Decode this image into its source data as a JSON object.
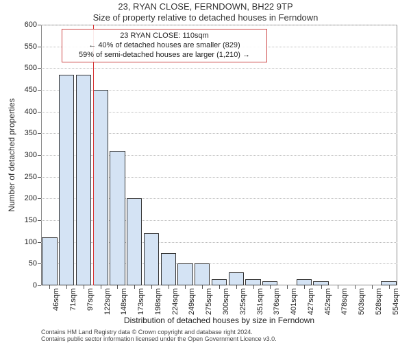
{
  "title": {
    "address": "23, RYAN CLOSE, FERNDOWN, BH22 9TP",
    "subtitle": "Size of property relative to detached houses in Ferndown"
  },
  "ylabel": "Number of detached properties",
  "xlabel": "Distribution of detached houses by size in Ferndown",
  "chart": {
    "type": "bar",
    "background_color": "#ffffff",
    "grid_color": "#bbbbbb",
    "border_color": "#888888",
    "bar_fill": "#d4e3f4",
    "bar_edge": "#333333",
    "bar_width_ratio": 0.9,
    "reference_line": {
      "x_index": 2.55,
      "color": "#d63636"
    },
    "ylim": [
      0,
      600
    ],
    "ytick_step": 50,
    "categories": [
      "46sqm",
      "71sqm",
      "97sqm",
      "122sqm",
      "148sqm",
      "173sqm",
      "198sqm",
      "224sqm",
      "249sqm",
      "275sqm",
      "300sqm",
      "325sqm",
      "351sqm",
      "376sqm",
      "401sqm",
      "427sqm",
      "452sqm",
      "478sqm",
      "503sqm",
      "528sqm",
      "554sqm"
    ],
    "values": [
      110,
      485,
      485,
      450,
      310,
      200,
      120,
      75,
      50,
      50,
      15,
      30,
      15,
      10,
      0,
      15,
      10,
      0,
      0,
      0,
      10
    ]
  },
  "annotation": {
    "line1": "23 RYAN CLOSE: 110sqm",
    "line2": "← 40% of detached houses are smaller (829)",
    "line3": "59% of semi-detached houses are larger (1,210) →",
    "border_color": "#cc4444",
    "fontsize": 11
  },
  "footer": {
    "line1": "Contains HM Land Registry data © Crown copyright and database right 2024.",
    "line2": "Contains public sector information licensed under the Open Government Licence v3.0."
  }
}
